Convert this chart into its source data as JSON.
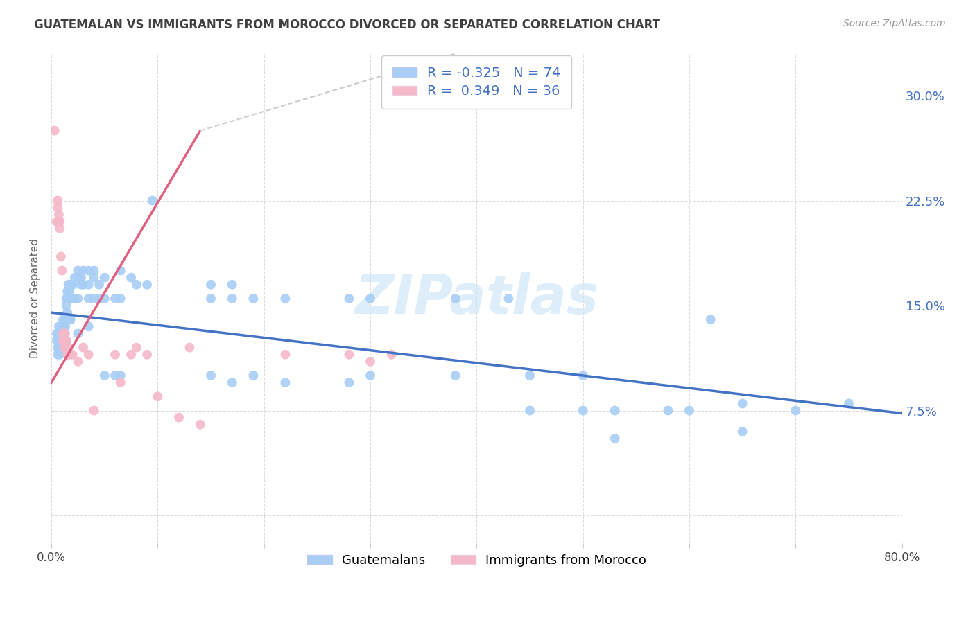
{
  "title": "GUATEMALAN VS IMMIGRANTS FROM MOROCCO DIVORCED OR SEPARATED CORRELATION CHART",
  "source": "Source: ZipAtlas.com",
  "ylabel": "Divorced or Separated",
  "ytick_labels": [
    "",
    "7.5%",
    "15.0%",
    "22.5%",
    "30.0%"
  ],
  "ytick_values": [
    0.0,
    0.075,
    0.15,
    0.225,
    0.3
  ],
  "xlim": [
    0.0,
    0.8
  ],
  "ylim": [
    -0.02,
    0.33
  ],
  "legend_blue_r": "-0.325",
  "legend_blue_n": "74",
  "legend_pink_r": "0.349",
  "legend_pink_n": "36",
  "legend_label_blue": "Guatemalans",
  "legend_label_pink": "Immigrants from Morocco",
  "blue_color": "#a8cef5",
  "pink_color": "#f5b8c8",
  "blue_line_color": "#4472c4",
  "pink_line_color": "#e06080",
  "title_color": "#404040",
  "source_color": "#999999",
  "blue_scatter": [
    [
      0.005,
      0.13
    ],
    [
      0.005,
      0.125
    ],
    [
      0.006,
      0.12
    ],
    [
      0.006,
      0.115
    ],
    [
      0.007,
      0.135
    ],
    [
      0.007,
      0.13
    ],
    [
      0.007,
      0.125
    ],
    [
      0.007,
      0.12
    ],
    [
      0.008,
      0.13
    ],
    [
      0.008,
      0.125
    ],
    [
      0.008,
      0.12
    ],
    [
      0.008,
      0.115
    ],
    [
      0.009,
      0.13
    ],
    [
      0.009,
      0.125
    ],
    [
      0.01,
      0.135
    ],
    [
      0.01,
      0.13
    ],
    [
      0.01,
      0.125
    ],
    [
      0.01,
      0.12
    ],
    [
      0.011,
      0.14
    ],
    [
      0.011,
      0.135
    ],
    [
      0.012,
      0.135
    ],
    [
      0.012,
      0.13
    ],
    [
      0.013,
      0.14
    ],
    [
      0.013,
      0.135
    ],
    [
      0.013,
      0.125
    ],
    [
      0.014,
      0.155
    ],
    [
      0.014,
      0.15
    ],
    [
      0.014,
      0.14
    ],
    [
      0.014,
      0.125
    ],
    [
      0.015,
      0.16
    ],
    [
      0.015,
      0.155
    ],
    [
      0.015,
      0.145
    ],
    [
      0.016,
      0.165
    ],
    [
      0.016,
      0.155
    ],
    [
      0.017,
      0.165
    ],
    [
      0.017,
      0.16
    ],
    [
      0.017,
      0.14
    ],
    [
      0.018,
      0.165
    ],
    [
      0.018,
      0.155
    ],
    [
      0.018,
      0.14
    ],
    [
      0.02,
      0.165
    ],
    [
      0.02,
      0.155
    ],
    [
      0.022,
      0.17
    ],
    [
      0.022,
      0.155
    ],
    [
      0.025,
      0.175
    ],
    [
      0.025,
      0.17
    ],
    [
      0.025,
      0.155
    ],
    [
      0.025,
      0.13
    ],
    [
      0.028,
      0.17
    ],
    [
      0.028,
      0.165
    ],
    [
      0.03,
      0.175
    ],
    [
      0.03,
      0.165
    ],
    [
      0.035,
      0.175
    ],
    [
      0.035,
      0.165
    ],
    [
      0.035,
      0.155
    ],
    [
      0.035,
      0.135
    ],
    [
      0.04,
      0.175
    ],
    [
      0.04,
      0.17
    ],
    [
      0.04,
      0.155
    ],
    [
      0.045,
      0.165
    ],
    [
      0.045,
      0.155
    ],
    [
      0.05,
      0.17
    ],
    [
      0.05,
      0.155
    ],
    [
      0.05,
      0.1
    ],
    [
      0.06,
      0.155
    ],
    [
      0.06,
      0.1
    ],
    [
      0.065,
      0.175
    ],
    [
      0.065,
      0.155
    ],
    [
      0.065,
      0.1
    ],
    [
      0.075,
      0.17
    ],
    [
      0.08,
      0.165
    ],
    [
      0.09,
      0.165
    ],
    [
      0.095,
      0.225
    ],
    [
      0.15,
      0.165
    ],
    [
      0.15,
      0.155
    ],
    [
      0.15,
      0.1
    ],
    [
      0.17,
      0.165
    ],
    [
      0.17,
      0.155
    ],
    [
      0.17,
      0.095
    ],
    [
      0.19,
      0.155
    ],
    [
      0.19,
      0.1
    ],
    [
      0.22,
      0.155
    ],
    [
      0.22,
      0.095
    ],
    [
      0.28,
      0.155
    ],
    [
      0.28,
      0.095
    ],
    [
      0.3,
      0.155
    ],
    [
      0.3,
      0.1
    ],
    [
      0.38,
      0.155
    ],
    [
      0.38,
      0.1
    ],
    [
      0.43,
      0.155
    ],
    [
      0.45,
      0.1
    ],
    [
      0.45,
      0.075
    ],
    [
      0.5,
      0.1
    ],
    [
      0.5,
      0.075
    ],
    [
      0.53,
      0.075
    ],
    [
      0.53,
      0.055
    ],
    [
      0.58,
      0.075
    ],
    [
      0.6,
      0.075
    ],
    [
      0.62,
      0.14
    ],
    [
      0.65,
      0.08
    ],
    [
      0.65,
      0.06
    ],
    [
      0.7,
      0.075
    ],
    [
      0.75,
      0.08
    ]
  ],
  "pink_scatter": [
    [
      0.003,
      0.275
    ],
    [
      0.005,
      0.21
    ],
    [
      0.006,
      0.225
    ],
    [
      0.006,
      0.22
    ],
    [
      0.007,
      0.215
    ],
    [
      0.007,
      0.21
    ],
    [
      0.008,
      0.21
    ],
    [
      0.008,
      0.205
    ],
    [
      0.009,
      0.185
    ],
    [
      0.01,
      0.175
    ],
    [
      0.011,
      0.13
    ],
    [
      0.011,
      0.125
    ],
    [
      0.012,
      0.125
    ],
    [
      0.012,
      0.12
    ],
    [
      0.013,
      0.13
    ],
    [
      0.014,
      0.125
    ],
    [
      0.015,
      0.115
    ],
    [
      0.016,
      0.12
    ],
    [
      0.017,
      0.115
    ],
    [
      0.02,
      0.115
    ],
    [
      0.025,
      0.11
    ],
    [
      0.03,
      0.12
    ],
    [
      0.035,
      0.115
    ],
    [
      0.04,
      0.075
    ],
    [
      0.06,
      0.115
    ],
    [
      0.065,
      0.095
    ],
    [
      0.075,
      0.115
    ],
    [
      0.08,
      0.12
    ],
    [
      0.09,
      0.115
    ],
    [
      0.1,
      0.085
    ],
    [
      0.12,
      0.07
    ],
    [
      0.13,
      0.12
    ],
    [
      0.14,
      0.065
    ],
    [
      0.22,
      0.115
    ],
    [
      0.28,
      0.115
    ],
    [
      0.3,
      0.11
    ],
    [
      0.32,
      0.115
    ]
  ],
  "blue_trendline": [
    [
      0.0,
      0.145
    ],
    [
      0.8,
      0.073
    ]
  ],
  "pink_trendline_solid": [
    [
      0.0,
      0.095
    ],
    [
      0.14,
      0.275
    ]
  ],
  "pink_trendline_dashed": [
    [
      0.14,
      0.275
    ],
    [
      0.38,
      0.33
    ]
  ]
}
